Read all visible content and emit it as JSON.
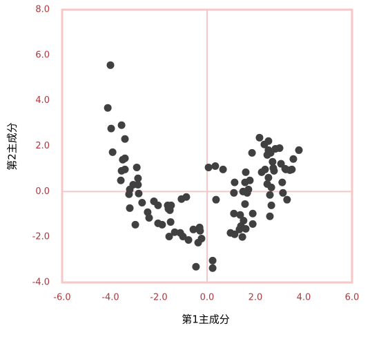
{
  "chart_data": {
    "type": "scatter",
    "xlabel": "第1主成分",
    "ylabel": "第2主成分",
    "color": "#404040",
    "frame_color": "#f7c6c7",
    "tick_color": "#b5333a",
    "xlim": [
      -6,
      6
    ],
    "ylim": [
      -4,
      8
    ],
    "xticks": [
      {
        "value": -6,
        "label": "-6.0"
      },
      {
        "value": -4,
        "label": "-4.0"
      },
      {
        "value": -2,
        "label": "-2.0"
      },
      {
        "value": 0,
        "label": "0.0"
      },
      {
        "value": 2,
        "label": "2.0"
      },
      {
        "value": 4,
        "label": "4.0"
      },
      {
        "value": 6,
        "label": "6.0"
      }
    ],
    "yticks": [
      {
        "value": -4,
        "label": "-4.0"
      },
      {
        "value": -2,
        "label": "-2.0"
      },
      {
        "value": 0,
        "label": "0.0"
      },
      {
        "value": 2,
        "label": "2.0"
      },
      {
        "value": 4,
        "label": "4.0"
      },
      {
        "value": 6,
        "label": "6.0"
      },
      {
        "value": 8,
        "label": "8.0"
      }
    ],
    "x": [
      -4.0,
      -4.11,
      -3.97,
      -3.54,
      -3.4,
      -3.91,
      -3.49,
      -3.4,
      -3.54,
      -3.4,
      -3.57,
      -2.91,
      -2.86,
      -3.06,
      -3.2,
      -3.23,
      -2.86,
      -2.83,
      -3.2,
      -2.69,
      -2.97,
      -2.46,
      -2.4,
      -2.2,
      -2.03,
      -2.03,
      -1.86,
      -1.63,
      -1.6,
      -1.49,
      -1.54,
      -1.51,
      -1.57,
      -1.34,
      -1.11,
      -1.0,
      -0.77,
      -1.06,
      -0.86,
      -0.57,
      -0.31,
      -0.29,
      -0.37,
      -0.23,
      -0.46,
      0.23,
      0.23,
      0.06,
      0.34,
      0.66,
      0.37,
      0.97,
      1.14,
      1.11,
      1.11,
      1.14,
      1.37,
      1.4,
      1.34,
      1.46,
      1.6,
      1.51,
      1.57,
      1.49,
      1.6,
      1.57,
      1.66,
      1.77,
      1.89,
      1.89,
      1.71,
      1.86,
      2.17,
      2.37,
      2.54,
      2.49,
      2.54,
      2.63,
      2.4,
      2.26,
      2.54,
      2.49,
      2.66,
      2.6,
      2.66,
      2.6,
      2.83,
      3.0,
      3.06,
      2.71,
      2.77,
      3.11,
      3.14,
      3.23,
      3.31,
      3.43,
      3.51,
      3.57,
      3.8,
      3.26,
      2.74
    ],
    "y": [
      5.56,
      3.68,
      2.77,
      2.92,
      2.31,
      1.73,
      1.4,
      1.46,
      0.91,
      0.97,
      0.49,
      1.06,
      0.58,
      0.3,
      0.09,
      -0.12,
      0.3,
      -0.09,
      -0.73,
      -0.49,
      -1.46,
      -0.91,
      -1.16,
      -0.43,
      -0.61,
      -1.4,
      -1.46,
      -0.61,
      -0.76,
      -0.61,
      -0.82,
      -1.34,
      -1.98,
      -1.79,
      -1.82,
      -1.98,
      -2.13,
      -0.33,
      -0.24,
      -1.67,
      -1.58,
      -1.73,
      -2.25,
      -2.07,
      -3.31,
      -3.04,
      -3.37,
      1.06,
      1.12,
      0.97,
      -0.36,
      -1.82,
      -1.88,
      -0.97,
      -0.06,
      0.4,
      -1.03,
      -1.52,
      -1.67,
      -2.0,
      -1.64,
      -1.28,
      -0.55,
      0.0,
      0.85,
      0.4,
      -0.06,
      0.49,
      -0.97,
      -1.43,
      0.09,
      1.7,
      2.37,
      2.07,
      2.22,
      1.61,
      1.82,
      1.7,
      0.97,
      0.85,
      0.61,
      0.33,
      0.18,
      -0.15,
      -0.61,
      -1.09,
      1.88,
      1.91,
      1.22,
      1.31,
      0.91,
      0.4,
      -0.06,
      1.0,
      -0.36,
      0.94,
      0.97,
      1.43,
      1.82,
      0.97,
      1.03
    ]
  }
}
